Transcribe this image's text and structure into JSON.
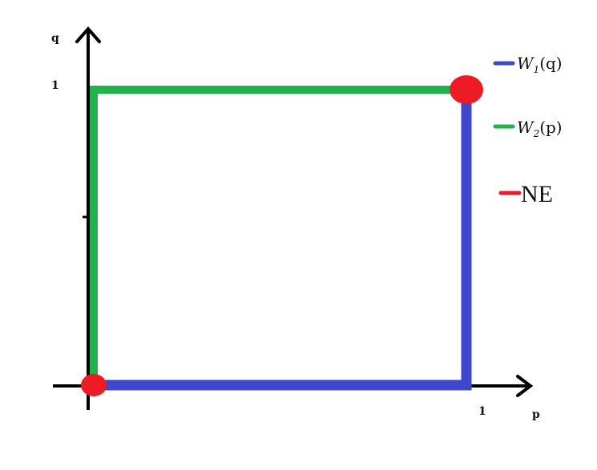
{
  "axes": {
    "x_label": "p",
    "y_label": "q",
    "x_tick_label": "1",
    "y_tick_label": "1"
  },
  "legend": [
    {
      "key": "w1",
      "label_main": "W",
      "label_sub": "1",
      "label_tail": "(q)",
      "color": "#3f48cc"
    },
    {
      "key": "w2",
      "label_main": "W",
      "label_sub": "2",
      "label_tail": "(p)",
      "color": "#22b14c"
    },
    {
      "key": "ne",
      "label_main": "NE",
      "label_sub": "",
      "label_tail": "",
      "color": "#ed1c24"
    }
  ],
  "colors": {
    "axis": "#000000",
    "w1": "#3f48cc",
    "w2": "#22b14c",
    "ne": "#ed1c24"
  },
  "best_responses": {
    "w1_points": [
      [
        0,
        0
      ],
      [
        1,
        0
      ],
      [
        1,
        1
      ]
    ],
    "w2_points": [
      [
        0,
        0
      ],
      [
        0,
        1
      ],
      [
        1,
        1
      ]
    ]
  },
  "equilibria": [
    {
      "p": 0,
      "q": 0
    },
    {
      "p": 1,
      "q": 1
    }
  ]
}
